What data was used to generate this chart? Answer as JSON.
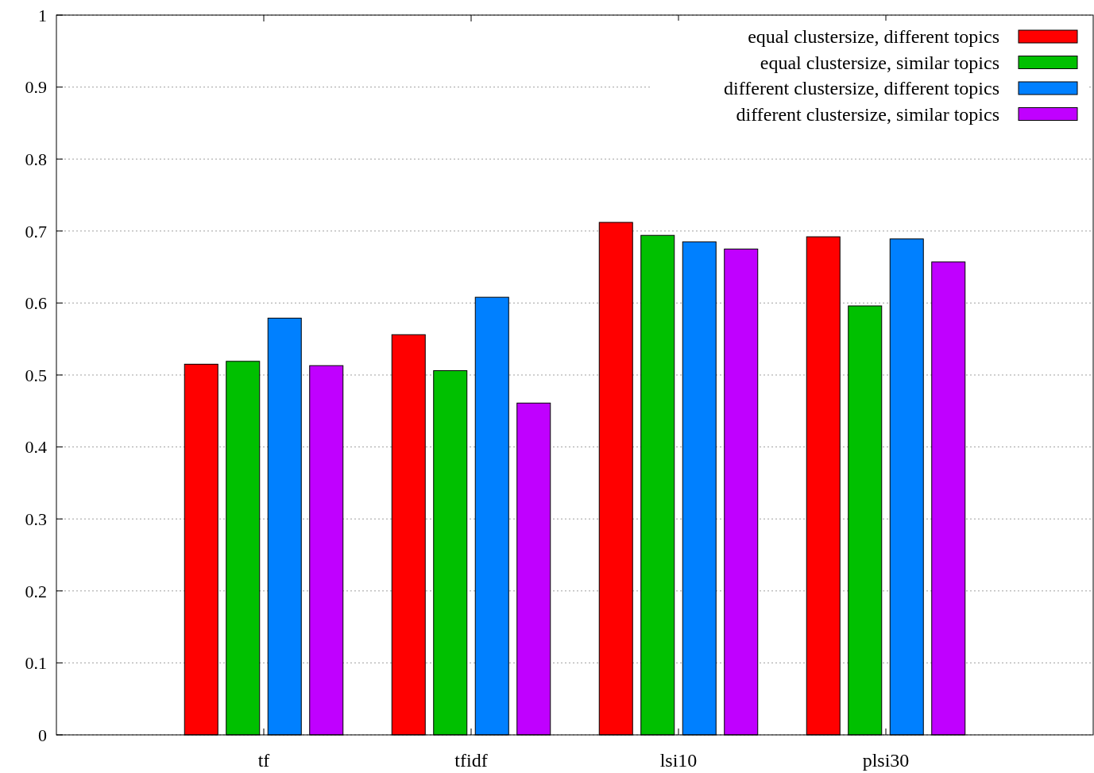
{
  "chart_data": {
    "type": "bar",
    "categories": [
      "tf",
      "tfidf",
      "lsi10",
      "plsi30"
    ],
    "series": [
      {
        "name": "equal clustersize, different topics",
        "color": "#ff0000",
        "values": [
          0.515,
          0.556,
          0.712,
          0.692
        ]
      },
      {
        "name": "equal clustersize, similar topics",
        "color": "#00c000",
        "values": [
          0.519,
          0.506,
          0.694,
          0.596
        ]
      },
      {
        "name": "different clustersize, different topics",
        "color": "#0080ff",
        "values": [
          0.579,
          0.608,
          0.685,
          0.689
        ]
      },
      {
        "name": "different clustersize, similar topics",
        "color": "#c000ff",
        "values": [
          0.513,
          0.461,
          0.675,
          0.657
        ]
      }
    ],
    "ylim": [
      0,
      1
    ],
    "yticks": [
      0,
      0.1,
      0.2,
      0.3,
      0.4,
      0.5,
      0.6,
      0.7,
      0.8,
      0.9,
      1
    ],
    "grid": "y",
    "legend": "top right"
  }
}
